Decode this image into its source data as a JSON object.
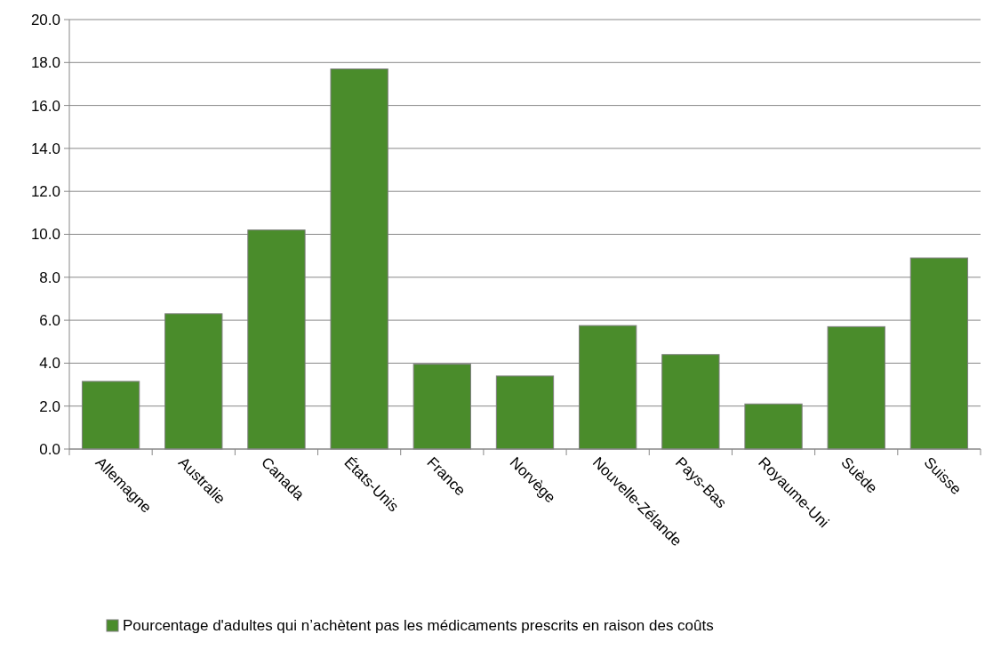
{
  "chart_data": {
    "type": "bar",
    "categories": [
      "Allemagne",
      "Australie",
      "Canada",
      "États-Unis",
      "France",
      "Norvège",
      "Nouvelle-Zélande",
      "Pays-Bas",
      "Royaume-Uni",
      "Suède",
      "Suisse"
    ],
    "series": [
      {
        "name": "Pourcentage d'adultes qui n’achètent pas les médicaments prescrits en raison des coûts",
        "color": "#4a8c2b",
        "values": [
          3.15,
          6.3,
          10.2,
          17.7,
          3.95,
          3.4,
          5.75,
          4.4,
          2.1,
          5.7,
          8.9
        ]
      }
    ],
    "ylim": [
      0,
      20
    ],
    "yticks": [
      {
        "value": 0,
        "label": "0.0"
      },
      {
        "value": 2,
        "label": "2.0"
      },
      {
        "value": 4,
        "label": "4.0"
      },
      {
        "value": 6,
        "label": "6.0"
      },
      {
        "value": 8,
        "label": "8.0"
      },
      {
        "value": 10,
        "label": "10.0"
      },
      {
        "value": 12,
        "label": "12.0"
      },
      {
        "value": 14,
        "label": "14.0"
      },
      {
        "value": 16,
        "label": "16.0"
      },
      {
        "value": 18,
        "label": "18.0"
      },
      {
        "value": 20,
        "label": "20.0"
      }
    ],
    "grid": "y",
    "legend": "bottom"
  }
}
